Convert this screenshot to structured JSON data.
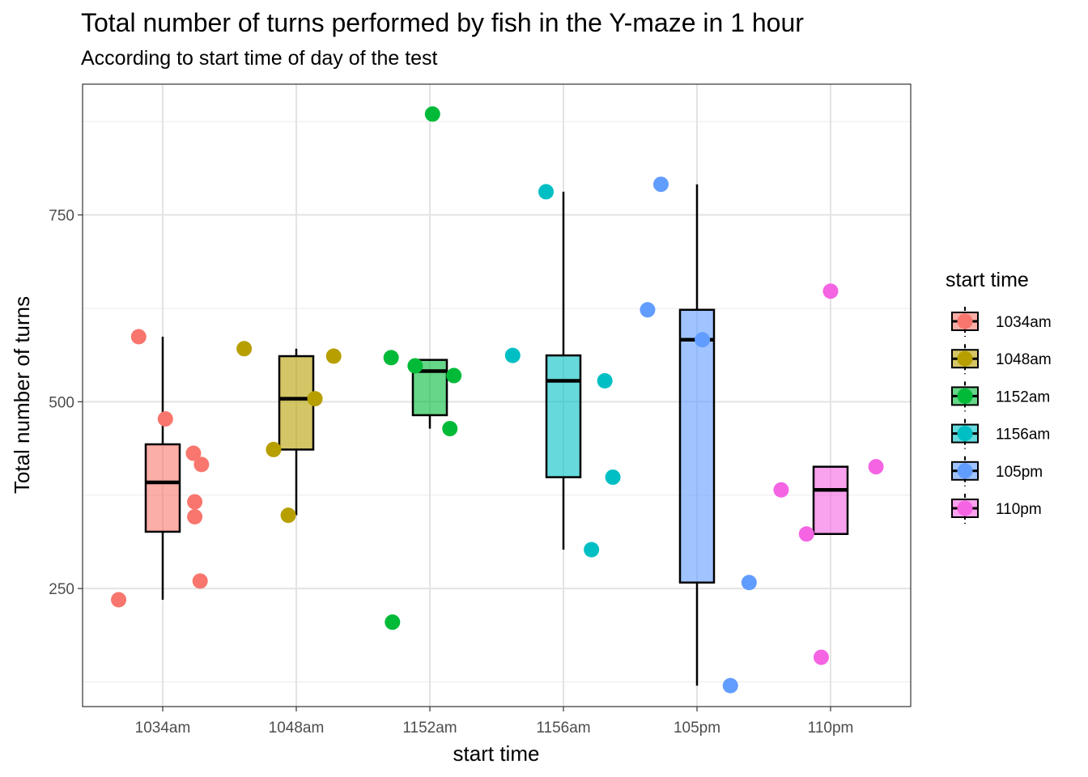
{
  "chart_data": {
    "type": "boxplot",
    "title": "Total number of turns performed by fish in the Y-maze in 1 hour",
    "subtitle": "According to start time of day of the test",
    "xlabel": "start time",
    "ylabel": "Total number of turns",
    "categories": [
      "1034am",
      "1048am",
      "1152am",
      "1156am",
      "105pm",
      "110pm"
    ],
    "yticks": [
      250,
      500,
      750
    ],
    "ylim": [
      92,
      925
    ],
    "grid": true,
    "legend": {
      "title": "start time",
      "position": "right",
      "entries": [
        "1034am",
        "1048am",
        "1152am",
        "1156am",
        "105pm",
        "110pm"
      ]
    },
    "colors": {
      "1034am": "#F8766D",
      "1048am": "#B79F00",
      "1152am": "#00BA38",
      "1156am": "#00BFC4",
      "105pm": "#619CFF",
      "110pm": "#F564E3"
    },
    "boxes": [
      {
        "category": "1034am",
        "whisker_low": 235,
        "q1": 326,
        "median": 392,
        "q3": 443,
        "whisker_high": 587
      },
      {
        "category": "1048am",
        "whisker_low": 348,
        "q1": 436,
        "median": 504,
        "q3": 561,
        "whisker_high": 571
      },
      {
        "category": "1152am",
        "whisker_low": 464,
        "q1": 482,
        "median": 541,
        "q3": 556,
        "whisker_high": 556
      },
      {
        "category": "1156am",
        "whisker_low": 302,
        "q1": 399,
        "median": 528,
        "q3": 562,
        "whisker_high": 781
      },
      {
        "category": "105pm",
        "whisker_low": 120,
        "q1": 258,
        "median": 583,
        "q3": 623,
        "whisker_high": 791
      },
      {
        "category": "110pm",
        "whisker_low": 323,
        "q1": 323,
        "median": 382,
        "q3": 413,
        "whisker_high": 413
      }
    ],
    "points": [
      {
        "category": "1034am",
        "jitter": -0.33,
        "y": 235
      },
      {
        "category": "1034am",
        "jitter": -0.18,
        "y": 587
      },
      {
        "category": "1034am",
        "jitter": 0.02,
        "y": 477
      },
      {
        "category": "1034am",
        "jitter": 0.23,
        "y": 431
      },
      {
        "category": "1034am",
        "jitter": 0.29,
        "y": 416
      },
      {
        "category": "1034am",
        "jitter": 0.24,
        "y": 366
      },
      {
        "category": "1034am",
        "jitter": 0.24,
        "y": 346
      },
      {
        "category": "1034am",
        "jitter": 0.28,
        "y": 260
      },
      {
        "category": "1048am",
        "jitter": -0.39,
        "y": 571
      },
      {
        "category": "1048am",
        "jitter": -0.17,
        "y": 436
      },
      {
        "category": "1048am",
        "jitter": -0.06,
        "y": 348
      },
      {
        "category": "1048am",
        "jitter": 0.14,
        "y": 504
      },
      {
        "category": "1048am",
        "jitter": 0.28,
        "y": 561
      },
      {
        "category": "1152am",
        "jitter": 0.02,
        "y": 885
      },
      {
        "category": "1152am",
        "jitter": -0.29,
        "y": 559
      },
      {
        "category": "1152am",
        "jitter": -0.11,
        "y": 548
      },
      {
        "category": "1152am",
        "jitter": 0.18,
        "y": 535
      },
      {
        "category": "1152am",
        "jitter": 0.15,
        "y": 464
      },
      {
        "category": "1152am",
        "jitter": -0.28,
        "y": 205
      },
      {
        "category": "1156am",
        "jitter": -0.13,
        "y": 781
      },
      {
        "category": "1156am",
        "jitter": -0.38,
        "y": 562
      },
      {
        "category": "1156am",
        "jitter": 0.31,
        "y": 528
      },
      {
        "category": "1156am",
        "jitter": 0.37,
        "y": 399
      },
      {
        "category": "1156am",
        "jitter": 0.21,
        "y": 302
      },
      {
        "category": "105pm",
        "jitter": -0.27,
        "y": 791
      },
      {
        "category": "105pm",
        "jitter": -0.37,
        "y": 623
      },
      {
        "category": "105pm",
        "jitter": 0.04,
        "y": 583
      },
      {
        "category": "105pm",
        "jitter": 0.39,
        "y": 258
      },
      {
        "category": "105pm",
        "jitter": 0.25,
        "y": 120
      },
      {
        "category": "110pm",
        "jitter": 0.0,
        "y": 648
      },
      {
        "category": "110pm",
        "jitter": 0.34,
        "y": 413
      },
      {
        "category": "110pm",
        "jitter": -0.37,
        "y": 382
      },
      {
        "category": "110pm",
        "jitter": -0.18,
        "y": 323
      },
      {
        "category": "110pm",
        "jitter": -0.07,
        "y": 158
      }
    ]
  }
}
